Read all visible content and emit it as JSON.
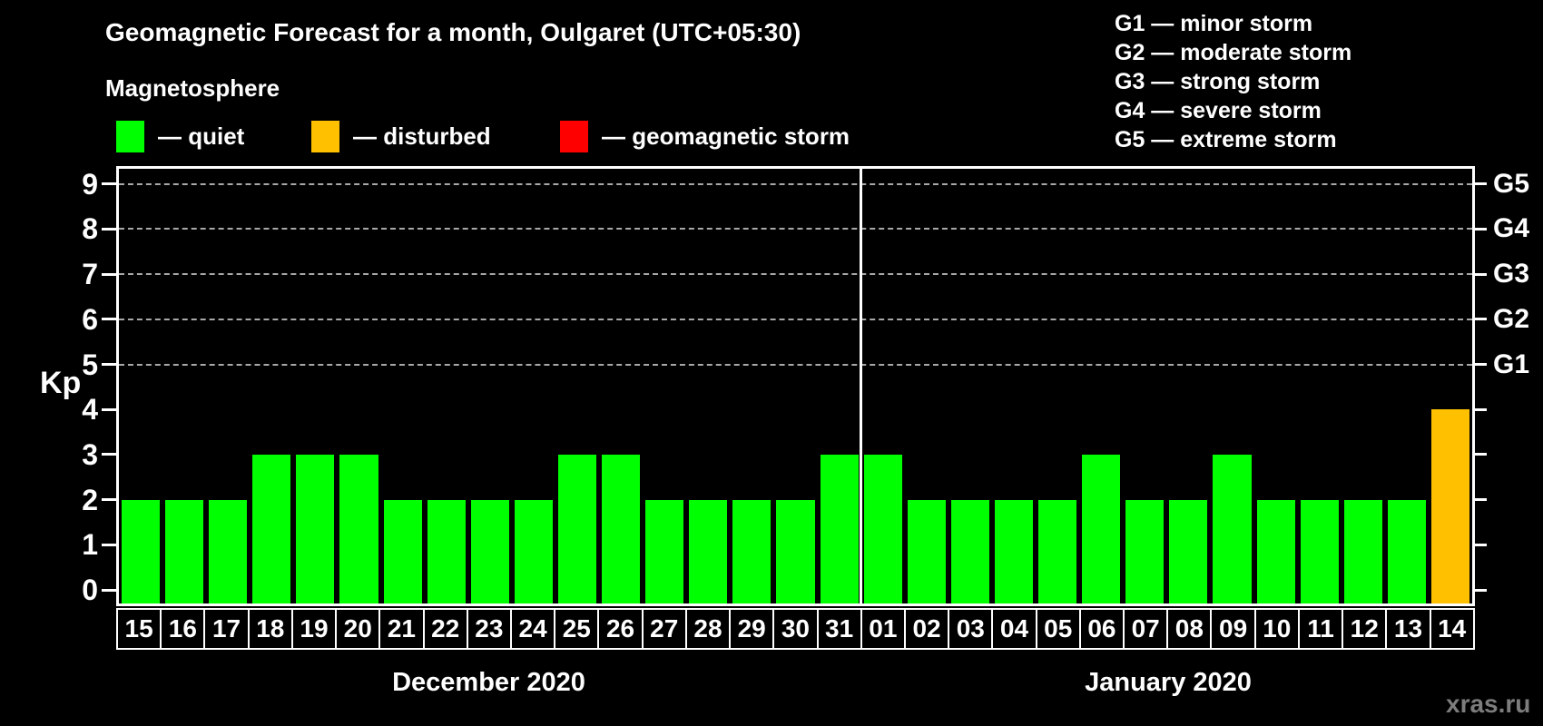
{
  "header": {
    "subtitle": "Magnetosphere"
  },
  "legend": {
    "items": [
      {
        "status": "quiet",
        "label": "— quiet",
        "color": "#00ff00"
      },
      {
        "status": "disturbed",
        "label": "— disturbed",
        "color": "#ffc000"
      },
      {
        "status": "storm",
        "label": "— geomagnetic storm",
        "color": "#ff0000"
      }
    ]
  },
  "storm_scale": [
    "G1 — minor storm",
    "G2 — moderate storm",
    "G3 — strong storm",
    "G4 — severe storm",
    "G5 — extreme storm"
  ],
  "watermark": "xras.ru",
  "chart_data": {
    "type": "bar",
    "title": "Geomagnetic Forecast for a month, Oulgaret (UTC+05:30)",
    "ylabel": "Kp",
    "ylim": [
      0,
      9
    ],
    "yticks": [
      0,
      1,
      2,
      3,
      4,
      5,
      6,
      7,
      8,
      9
    ],
    "grid": "dashed horizontal lines at Kp 5-9 only",
    "legend_position": "top",
    "right_axis": [
      {
        "label": "G5",
        "kp": 9
      },
      {
        "label": "G4",
        "kp": 8
      },
      {
        "label": "G3",
        "kp": 7
      },
      {
        "label": "G2",
        "kp": 6
      },
      {
        "label": "G1",
        "kp": 5
      }
    ],
    "status_colors": {
      "quiet": "#00ff00",
      "disturbed": "#ffc000",
      "storm": "#ff0000"
    },
    "months": [
      {
        "label": "December 2020",
        "days": [
          {
            "day": "15",
            "kp": 2,
            "status": "quiet"
          },
          {
            "day": "16",
            "kp": 2,
            "status": "quiet"
          },
          {
            "day": "17",
            "kp": 2,
            "status": "quiet"
          },
          {
            "day": "18",
            "kp": 3,
            "status": "quiet"
          },
          {
            "day": "19",
            "kp": 3,
            "status": "quiet"
          },
          {
            "day": "20",
            "kp": 3,
            "status": "quiet"
          },
          {
            "day": "21",
            "kp": 2,
            "status": "quiet"
          },
          {
            "day": "22",
            "kp": 2,
            "status": "quiet"
          },
          {
            "day": "23",
            "kp": 2,
            "status": "quiet"
          },
          {
            "day": "24",
            "kp": 2,
            "status": "quiet"
          },
          {
            "day": "25",
            "kp": 3,
            "status": "quiet"
          },
          {
            "day": "26",
            "kp": 3,
            "status": "quiet"
          },
          {
            "day": "27",
            "kp": 2,
            "status": "quiet"
          },
          {
            "day": "28",
            "kp": 2,
            "status": "quiet"
          },
          {
            "day": "29",
            "kp": 2,
            "status": "quiet"
          },
          {
            "day": "30",
            "kp": 2,
            "status": "quiet"
          },
          {
            "day": "31",
            "kp": 3,
            "status": "quiet"
          }
        ]
      },
      {
        "label": "January 2020",
        "days": [
          {
            "day": "01",
            "kp": 3,
            "status": "quiet"
          },
          {
            "day": "02",
            "kp": 2,
            "status": "quiet"
          },
          {
            "day": "03",
            "kp": 2,
            "status": "quiet"
          },
          {
            "day": "04",
            "kp": 2,
            "status": "quiet"
          },
          {
            "day": "05",
            "kp": 2,
            "status": "quiet"
          },
          {
            "day": "06",
            "kp": 3,
            "status": "quiet"
          },
          {
            "day": "07",
            "kp": 2,
            "status": "quiet"
          },
          {
            "day": "08",
            "kp": 2,
            "status": "quiet"
          },
          {
            "day": "09",
            "kp": 3,
            "status": "quiet"
          },
          {
            "day": "10",
            "kp": 2,
            "status": "quiet"
          },
          {
            "day": "11",
            "kp": 2,
            "status": "quiet"
          },
          {
            "day": "12",
            "kp": 2,
            "status": "quiet"
          },
          {
            "day": "13",
            "kp": 2,
            "status": "quiet"
          },
          {
            "day": "14",
            "kp": 4,
            "status": "disturbed"
          }
        ]
      }
    ]
  }
}
